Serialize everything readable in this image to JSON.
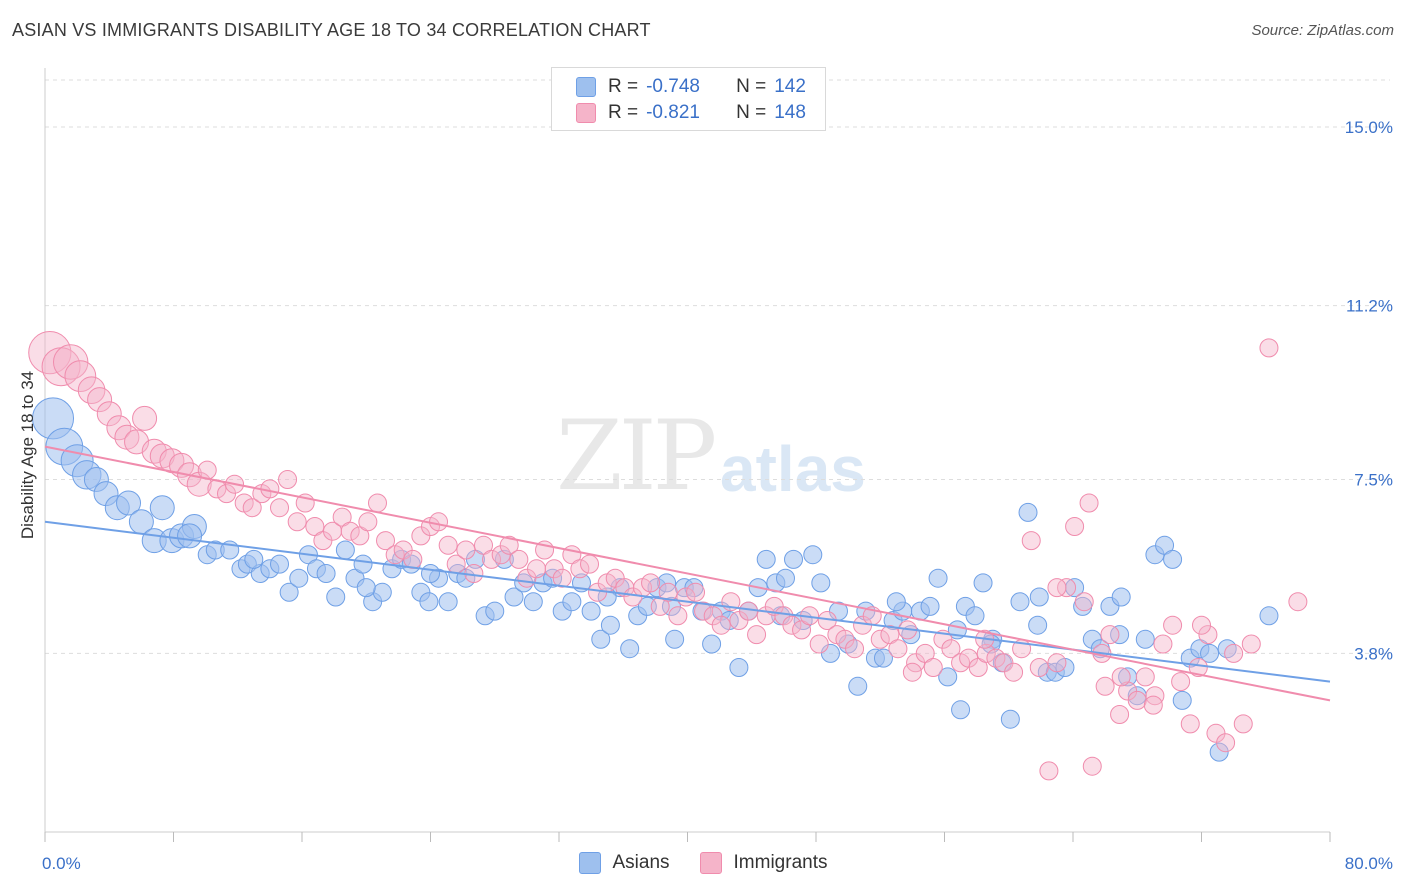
{
  "title": "ASIAN VS IMMIGRANTS DISABILITY AGE 18 TO 34 CORRELATION CHART",
  "source": "Source: ZipAtlas.com",
  "watermark": {
    "zip": "ZIP",
    "atlas": "atlas"
  },
  "legend": {
    "r_label": "R =",
    "n_label": "N =",
    "rows": [
      {
        "r": "-0.748",
        "n": "142",
        "color": "#9ec0ee"
      },
      {
        "r": "-0.821",
        "n": "148",
        "color": "#f5b4c9"
      }
    ]
  },
  "bottom_legend": {
    "items": [
      {
        "label": "Asians",
        "color": "#9ec0ee"
      },
      {
        "label": "Immigrants",
        "color": "#f5b4c9"
      }
    ]
  },
  "chart_data": {
    "type": "scatter",
    "title": "ASIAN VS IMMIGRANTS DISABILITY AGE 18 TO 34 CORRELATION CHART",
    "xlabel": "",
    "ylabel": "Disability Age 18 to 34",
    "xlim": [
      0,
      80
    ],
    "ylim": [
      0,
      16
    ],
    "x_tick_labels": [
      "0.0%",
      "80.0%"
    ],
    "y_ticks": [
      3.8,
      7.5,
      11.2,
      15.0
    ],
    "y_tick_labels": [
      "3.8%",
      "7.5%",
      "11.2%",
      "15.0%"
    ],
    "grid": "horizontal dashed",
    "legend_position": "top-center",
    "series": [
      {
        "name": "Asians",
        "color": "#6fa0e6",
        "trend": {
          "x": [
            0,
            80
          ],
          "y": [
            6.6,
            3.2
          ]
        },
        "points": [
          [
            0.5,
            8.8
          ],
          [
            1.2,
            8.2
          ],
          [
            2.0,
            7.9
          ],
          [
            2.6,
            7.6
          ],
          [
            3.2,
            7.5
          ],
          [
            3.8,
            7.2
          ],
          [
            4.5,
            6.9
          ],
          [
            5.2,
            7.0
          ],
          [
            6.0,
            6.6
          ],
          [
            6.8,
            6.2
          ],
          [
            7.3,
            6.9
          ],
          [
            7.9,
            6.2
          ],
          [
            8.5,
            6.3
          ],
          [
            9.3,
            6.5
          ],
          [
            10.1,
            5.9
          ],
          [
            10.6,
            6.0
          ],
          [
            11.5,
            6.0
          ],
          [
            12.2,
            5.6
          ],
          [
            12.6,
            5.7
          ],
          [
            13.4,
            5.5
          ],
          [
            14.0,
            5.6
          ],
          [
            14.6,
            5.7
          ],
          [
            15.2,
            5.1
          ],
          [
            15.8,
            5.4
          ],
          [
            16.4,
            5.9
          ],
          [
            16.9,
            5.6
          ],
          [
            17.5,
            5.5
          ],
          [
            18.1,
            5.0
          ],
          [
            18.7,
            6.0
          ],
          [
            19.3,
            5.4
          ],
          [
            19.8,
            5.7
          ],
          [
            20.4,
            4.9
          ],
          [
            21.0,
            5.1
          ],
          [
            21.6,
            5.6
          ],
          [
            22.2,
            5.8
          ],
          [
            22.8,
            5.7
          ],
          [
            23.4,
            5.1
          ],
          [
            23.9,
            4.9
          ],
          [
            24.5,
            5.4
          ],
          [
            25.1,
            4.9
          ],
          [
            25.7,
            5.5
          ],
          [
            26.2,
            5.4
          ],
          [
            26.8,
            5.8
          ],
          [
            27.4,
            4.6
          ],
          [
            28.0,
            4.7
          ],
          [
            28.6,
            5.8
          ],
          [
            29.2,
            5.0
          ],
          [
            29.8,
            5.3
          ],
          [
            30.4,
            4.9
          ],
          [
            31.0,
            5.3
          ],
          [
            31.6,
            5.4
          ],
          [
            32.2,
            4.7
          ],
          [
            32.8,
            4.9
          ],
          [
            33.4,
            5.3
          ],
          [
            34.0,
            4.7
          ],
          [
            34.6,
            4.1
          ],
          [
            35.2,
            4.4
          ],
          [
            35.8,
            5.2
          ],
          [
            36.4,
            3.9
          ],
          [
            36.9,
            4.6
          ],
          [
            37.5,
            4.8
          ],
          [
            38.1,
            5.2
          ],
          [
            38.7,
            5.3
          ],
          [
            39.2,
            4.1
          ],
          [
            39.8,
            5.2
          ],
          [
            40.4,
            5.2
          ],
          [
            40.9,
            4.7
          ],
          [
            41.5,
            4.0
          ],
          [
            42.1,
            4.7
          ],
          [
            42.6,
            4.5
          ],
          [
            43.2,
            3.5
          ],
          [
            43.8,
            4.7
          ],
          [
            44.4,
            5.2
          ],
          [
            44.9,
            5.8
          ],
          [
            45.5,
            5.3
          ],
          [
            46.1,
            5.4
          ],
          [
            46.6,
            5.8
          ],
          [
            47.2,
            4.5
          ],
          [
            47.8,
            5.9
          ],
          [
            48.3,
            5.3
          ],
          [
            48.9,
            3.8
          ],
          [
            49.4,
            4.7
          ],
          [
            50.0,
            4.0
          ],
          [
            50.6,
            3.1
          ],
          [
            51.1,
            4.7
          ],
          [
            51.7,
            3.7
          ],
          [
            52.2,
            3.7
          ],
          [
            52.8,
            4.5
          ],
          [
            53.4,
            4.7
          ],
          [
            53.9,
            4.2
          ],
          [
            54.5,
            4.7
          ],
          [
            55.1,
            4.8
          ],
          [
            55.6,
            5.4
          ],
          [
            56.2,
            3.3
          ],
          [
            56.8,
            4.3
          ],
          [
            57.3,
            4.8
          ],
          [
            57.9,
            4.6
          ],
          [
            58.4,
            5.3
          ],
          [
            59.0,
            4.1
          ],
          [
            59.6,
            3.6
          ],
          [
            60.1,
            2.4
          ],
          [
            60.7,
            4.9
          ],
          [
            61.2,
            6.8
          ],
          [
            61.8,
            4.4
          ],
          [
            62.4,
            3.4
          ],
          [
            62.9,
            3.4
          ],
          [
            63.5,
            3.5
          ],
          [
            64.1,
            5.2
          ],
          [
            64.6,
            4.8
          ],
          [
            65.2,
            4.1
          ],
          [
            65.7,
            3.9
          ],
          [
            66.3,
            4.8
          ],
          [
            66.9,
            4.2
          ],
          [
            67.4,
            3.3
          ],
          [
            68.0,
            2.9
          ],
          [
            68.5,
            4.1
          ],
          [
            69.1,
            5.9
          ],
          [
            69.7,
            6.1
          ],
          [
            70.2,
            5.8
          ],
          [
            70.8,
            2.8
          ],
          [
            71.3,
            3.7
          ],
          [
            71.9,
            3.9
          ],
          [
            72.5,
            3.8
          ],
          [
            73.1,
            1.7
          ],
          [
            73.6,
            3.9
          ],
          [
            76.2,
            4.6
          ],
          [
            57.0,
            2.6
          ],
          [
            35.0,
            5.0
          ],
          [
            45.8,
            4.6
          ],
          [
            39.0,
            4.8
          ],
          [
            53.0,
            4.9
          ],
          [
            58.9,
            4.0
          ],
          [
            61.9,
            5.0
          ],
          [
            67.0,
            5.0
          ],
          [
            24.0,
            5.5
          ],
          [
            13.0,
            5.8
          ],
          [
            9.0,
            6.3
          ],
          [
            20.0,
            5.2
          ]
        ]
      },
      {
        "name": "Immigrants",
        "color": "#f08cad",
        "trend": {
          "x": [
            0,
            80
          ],
          "y": [
            8.2,
            2.8
          ]
        },
        "points": [
          [
            0.3,
            10.2
          ],
          [
            1.0,
            9.9
          ],
          [
            1.6,
            10.0
          ],
          [
            2.2,
            9.7
          ],
          [
            2.9,
            9.4
          ],
          [
            3.4,
            9.2
          ],
          [
            4.0,
            8.9
          ],
          [
            4.6,
            8.6
          ],
          [
            5.1,
            8.4
          ],
          [
            5.7,
            8.3
          ],
          [
            6.2,
            8.8
          ],
          [
            6.8,
            8.1
          ],
          [
            7.3,
            8.0
          ],
          [
            7.9,
            7.9
          ],
          [
            8.5,
            7.8
          ],
          [
            9.0,
            7.6
          ],
          [
            9.6,
            7.4
          ],
          [
            10.1,
            7.7
          ],
          [
            10.7,
            7.3
          ],
          [
            11.3,
            7.2
          ],
          [
            11.8,
            7.4
          ],
          [
            12.4,
            7.0
          ],
          [
            12.9,
            6.9
          ],
          [
            13.5,
            7.2
          ],
          [
            14.0,
            7.3
          ],
          [
            14.6,
            6.9
          ],
          [
            15.1,
            7.5
          ],
          [
            15.7,
            6.6
          ],
          [
            16.2,
            7.0
          ],
          [
            16.8,
            6.5
          ],
          [
            17.3,
            6.2
          ],
          [
            17.9,
            6.4
          ],
          [
            18.5,
            6.7
          ],
          [
            19.0,
            6.4
          ],
          [
            19.6,
            6.3
          ],
          [
            20.1,
            6.6
          ],
          [
            20.7,
            7.0
          ],
          [
            21.2,
            6.2
          ],
          [
            21.8,
            5.9
          ],
          [
            22.3,
            6.0
          ],
          [
            22.9,
            5.8
          ],
          [
            23.4,
            6.3
          ],
          [
            24.0,
            6.5
          ],
          [
            24.5,
            6.6
          ],
          [
            25.1,
            6.1
          ],
          [
            25.6,
            5.7
          ],
          [
            26.2,
            6.0
          ],
          [
            26.7,
            5.5
          ],
          [
            27.3,
            6.1
          ],
          [
            27.8,
            5.8
          ],
          [
            28.4,
            5.9
          ],
          [
            28.9,
            6.1
          ],
          [
            29.5,
            5.8
          ],
          [
            30.0,
            5.4
          ],
          [
            30.6,
            5.6
          ],
          [
            31.1,
            6.0
          ],
          [
            31.7,
            5.6
          ],
          [
            32.2,
            5.4
          ],
          [
            32.8,
            5.9
          ],
          [
            33.3,
            5.6
          ],
          [
            33.9,
            5.7
          ],
          [
            34.4,
            5.1
          ],
          [
            35.0,
            5.3
          ],
          [
            35.5,
            5.4
          ],
          [
            36.1,
            5.2
          ],
          [
            36.6,
            5.0
          ],
          [
            37.2,
            5.2
          ],
          [
            37.7,
            5.3
          ],
          [
            38.3,
            4.8
          ],
          [
            38.8,
            5.1
          ],
          [
            39.4,
            4.6
          ],
          [
            39.9,
            5.0
          ],
          [
            40.5,
            5.1
          ],
          [
            41.0,
            4.7
          ],
          [
            41.6,
            4.6
          ],
          [
            42.1,
            4.4
          ],
          [
            42.7,
            4.9
          ],
          [
            43.2,
            4.5
          ],
          [
            43.8,
            4.7
          ],
          [
            44.3,
            4.2
          ],
          [
            44.9,
            4.6
          ],
          [
            45.4,
            4.8
          ],
          [
            46.0,
            4.6
          ],
          [
            46.5,
            4.4
          ],
          [
            47.1,
            4.3
          ],
          [
            47.6,
            4.6
          ],
          [
            48.2,
            4.0
          ],
          [
            48.7,
            4.5
          ],
          [
            49.3,
            4.2
          ],
          [
            49.8,
            4.1
          ],
          [
            50.4,
            3.9
          ],
          [
            50.9,
            4.4
          ],
          [
            51.5,
            4.6
          ],
          [
            52.0,
            4.1
          ],
          [
            52.6,
            4.2
          ],
          [
            53.1,
            3.9
          ],
          [
            53.7,
            4.3
          ],
          [
            54.2,
            3.6
          ],
          [
            54.8,
            3.8
          ],
          [
            55.3,
            3.5
          ],
          [
            55.9,
            4.1
          ],
          [
            56.4,
            3.9
          ],
          [
            57.0,
            3.6
          ],
          [
            57.5,
            3.7
          ],
          [
            58.1,
            3.5
          ],
          [
            58.6,
            3.8
          ],
          [
            59.2,
            3.7
          ],
          [
            59.7,
            3.6
          ],
          [
            60.3,
            3.4
          ],
          [
            60.8,
            3.9
          ],
          [
            61.4,
            6.2
          ],
          [
            61.9,
            3.5
          ],
          [
            62.5,
            1.3
          ],
          [
            63.0,
            3.6
          ],
          [
            63.6,
            5.2
          ],
          [
            64.1,
            6.5
          ],
          [
            64.7,
            4.9
          ],
          [
            65.2,
            1.4
          ],
          [
            65.8,
            3.8
          ],
          [
            66.3,
            4.2
          ],
          [
            66.9,
            2.5
          ],
          [
            67.4,
            3.0
          ],
          [
            68.0,
            2.8
          ],
          [
            68.5,
            3.3
          ],
          [
            69.1,
            2.9
          ],
          [
            69.6,
            4.0
          ],
          [
            70.2,
            4.4
          ],
          [
            70.7,
            3.2
          ],
          [
            71.3,
            2.3
          ],
          [
            71.8,
            3.5
          ],
          [
            72.4,
            4.2
          ],
          [
            72.9,
            2.1
          ],
          [
            73.5,
            1.9
          ],
          [
            74.0,
            3.8
          ],
          [
            74.6,
            2.3
          ],
          [
            75.1,
            4.0
          ],
          [
            76.2,
            10.3
          ],
          [
            78.0,
            4.9
          ],
          [
            72.0,
            4.4
          ],
          [
            67.0,
            3.3
          ],
          [
            63.0,
            5.2
          ],
          [
            58.5,
            4.1
          ],
          [
            65.0,
            7.0
          ],
          [
            54.0,
            3.4
          ],
          [
            66.0,
            3.1
          ],
          [
            69.0,
            2.7
          ]
        ]
      }
    ]
  }
}
